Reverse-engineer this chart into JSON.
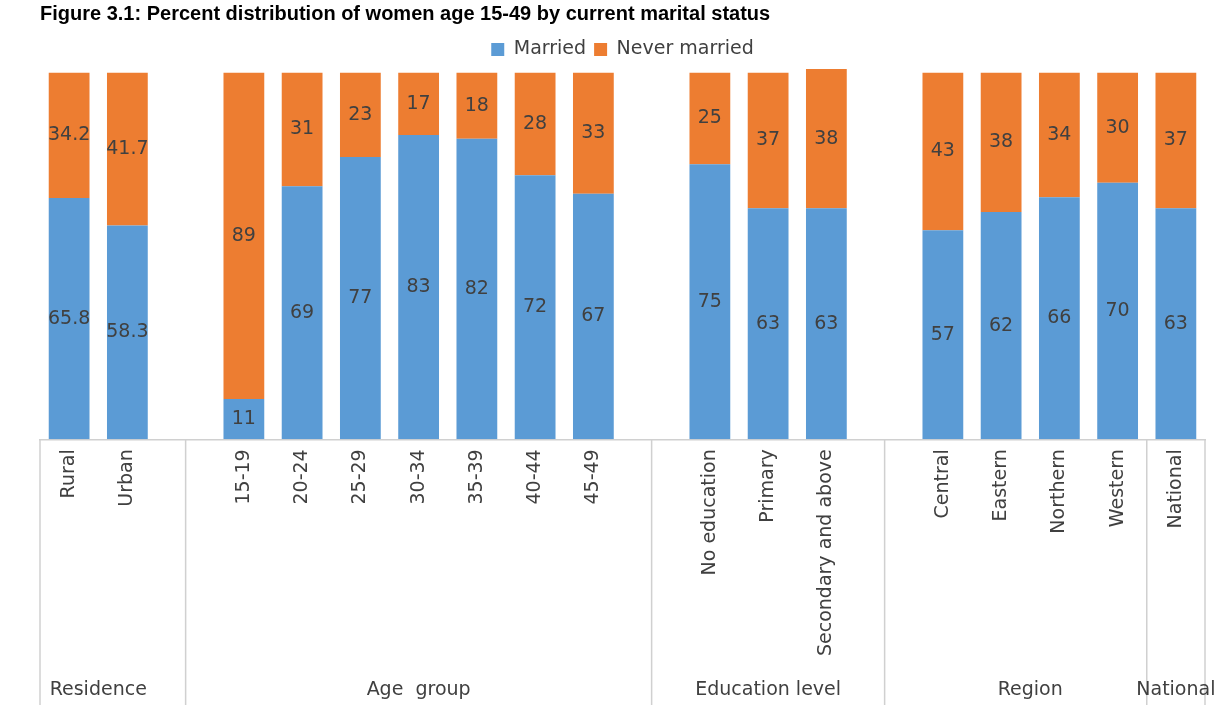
{
  "chart_data": {
    "type": "bar",
    "title": "Figure 3.1: Percent distribution of women age 15-49 by current marital status",
    "categories": [
      "Rural",
      "Urban",
      null,
      "15-19",
      "20-24",
      "25-29",
      "30-34",
      "35-39",
      "40-44",
      "45-49",
      null,
      "No education",
      "Primary",
      "Secondary and above",
      null,
      "Central",
      "Eastern",
      "Northern",
      "Western",
      "National"
    ],
    "series": [
      {
        "name": "Married",
        "color": "#5b9bd5",
        "values": [
          65.8,
          58.3,
          null,
          11,
          69,
          77,
          83,
          82,
          72,
          67,
          null,
          75,
          63,
          63,
          null,
          57,
          62,
          66,
          70,
          63
        ]
      },
      {
        "name": "Never married",
        "color": "#ed7d31",
        "values": [
          34.2,
          41.7,
          null,
          89,
          31,
          23,
          17,
          18,
          28,
          33,
          null,
          25,
          37,
          38,
          null,
          43,
          38,
          34,
          30,
          37
        ]
      }
    ],
    "stacked": true,
    "ylim": [
      0,
      101
    ],
    "tick_labels": "x",
    "data_labels": true,
    "legend": "top",
    "grid": false,
    "annotations": [
      "Residence",
      "Age  group",
      "Education level",
      "Region",
      "National"
    ]
  }
}
